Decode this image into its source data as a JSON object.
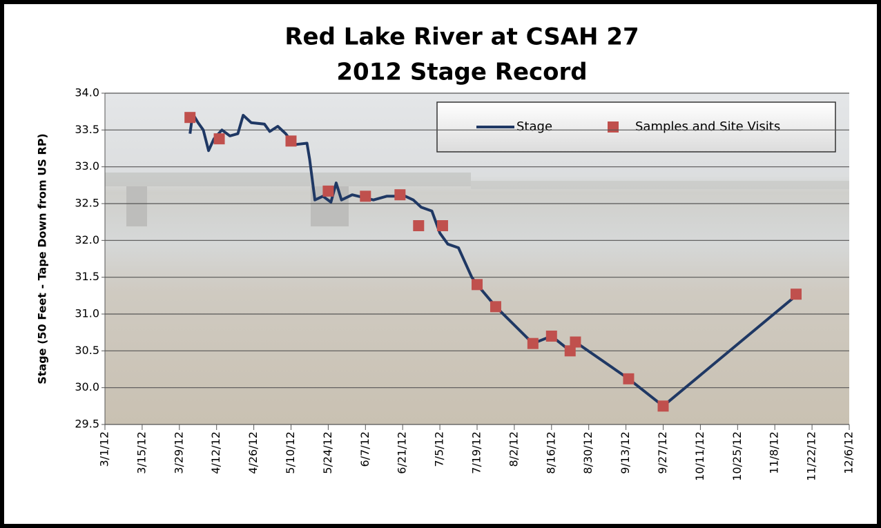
{
  "chart_data": {
    "type": "line",
    "title": "Red Lake River at CSAH 27",
    "subtitle": "2012 Stage Record",
    "y_label": "Stage (50 Feet - Tape Down from US RP)",
    "xlim": [
      "3/1/12",
      "12/6/12"
    ],
    "xticks": [
      "3/1/12",
      "3/15/12",
      "3/29/12",
      "4/12/12",
      "4/26/12",
      "5/10/12",
      "5/24/12",
      "6/7/12",
      "6/21/12",
      "7/5/12",
      "7/19/12",
      "8/2/12",
      "8/16/12",
      "8/30/12",
      "9/13/12",
      "9/27/12",
      "10/11/12",
      "10/25/12",
      "11/8/12",
      "11/22/12",
      "12/6/12"
    ],
    "ylim": [
      29.5,
      34
    ],
    "yticks": [
      {
        "value": 29.5,
        "label": "29.5"
      },
      {
        "value": 30,
        "label": "30.0"
      },
      30.5,
      {
        "value": 31,
        "label": "31.0"
      },
      31.5,
      {
        "value": 32,
        "label": "32.0"
      },
      32.5,
      {
        "value": 33,
        "label": "33.0"
      },
      33.5,
      {
        "value": 34,
        "label": "34.0"
      }
    ],
    "grid": true,
    "series": [
      {
        "name": "Stage",
        "color": "#1f3864",
        "marker": "line",
        "x": [
          "4/2/12",
          "4/3/12",
          "4/5/12",
          "4/7/12",
          "4/9/12",
          "4/11/12",
          "4/14/12",
          "4/17/12",
          "4/20/12",
          "4/22/12",
          "4/25/12",
          "4/30/12",
          "5/2/12",
          "5/5/12",
          "5/8/12",
          "5/11/12",
          "5/16/12",
          "5/17/12",
          "5/19/12",
          "5/22/12",
          "5/25/12",
          "5/27/12",
          "5/29/12",
          "6/2/12",
          "6/10/12",
          "6/15/12",
          "6/22/12",
          "6/25/12",
          "6/28/12",
          "7/2/12",
          "7/5/12",
          "7/8/12",
          "7/12/12",
          "7/17/12",
          "7/19/12",
          "7/26/12",
          "8/9/12",
          "8/16/12",
          "8/23/12",
          "8/25/12",
          "9/14/12",
          "9/27/12",
          "11/16/12"
        ],
        "values": [
          33.45,
          33.72,
          33.6,
          33.5,
          33.22,
          33.38,
          33.5,
          33.42,
          33.45,
          33.7,
          33.6,
          33.58,
          33.48,
          33.55,
          33.45,
          33.3,
          33.32,
          33.1,
          32.55,
          32.6,
          32.52,
          32.78,
          32.55,
          32.62,
          32.55,
          32.6,
          32.6,
          32.55,
          32.45,
          32.4,
          32.1,
          31.95,
          31.9,
          31.5,
          31.4,
          31.1,
          30.6,
          30.7,
          30.5,
          30.62,
          30.12,
          29.75,
          31.25
        ]
      },
      {
        "name": "Samples and Site Visits",
        "color": "#c0504d",
        "marker": "square",
        "x": [
          "4/2/12",
          "4/13/12",
          "5/10/12",
          "5/24/12",
          "6/7/12",
          "6/20/12",
          "6/27/12",
          "7/6/12",
          "7/19/12",
          "7/26/12",
          "8/9/12",
          "8/16/12",
          "8/23/12",
          "8/25/12",
          "9/14/12",
          "9/27/12",
          "11/16/12"
        ],
        "values": [
          33.67,
          33.38,
          33.35,
          32.67,
          32.6,
          32.62,
          32.2,
          32.2,
          31.4,
          31.1,
          30.6,
          30.7,
          30.5,
          30.62,
          30.12,
          29.75,
          31.27
        ]
      }
    ]
  }
}
